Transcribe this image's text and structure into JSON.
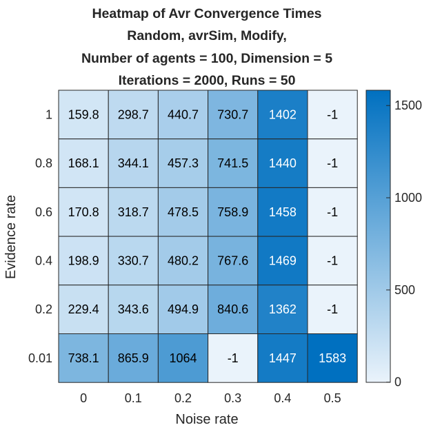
{
  "chart_data": {
    "type": "heatmap",
    "title": [
      "Heatmap of Avr Convergence Times",
      "Random, avrSim, Modify,",
      "Number of agents = 100, Dimension = 5",
      "Iterations = 2000, Runs = 50"
    ],
    "xlabel": "Noise rate",
    "ylabel": "Evidence rate",
    "x_categories": [
      "0",
      "0.1",
      "0.2",
      "0.3",
      "0.4",
      "0.5"
    ],
    "y_categories": [
      "1",
      "0.8",
      "0.6",
      "0.4",
      "0.2",
      "0.01"
    ],
    "values": [
      [
        159.8,
        298.7,
        440.7,
        730.7,
        1402,
        -1
      ],
      [
        168.1,
        344.1,
        457.3,
        741.5,
        1440,
        -1
      ],
      [
        170.8,
        318.7,
        478.5,
        758.9,
        1458,
        -1
      ],
      [
        198.9,
        330.7,
        480.2,
        767.6,
        1469,
        -1
      ],
      [
        229.4,
        343.6,
        494.9,
        840.6,
        1362,
        -1
      ],
      [
        738.1,
        865.9,
        1064,
        -1,
        1447,
        1583
      ]
    ],
    "value_labels": [
      [
        "159.8",
        "298.7",
        "440.7",
        "730.7",
        "1402",
        "-1"
      ],
      [
        "168.1",
        "344.1",
        "457.3",
        "741.5",
        "1440",
        "-1"
      ],
      [
        "170.8",
        "318.7",
        "478.5",
        "758.9",
        "1458",
        "-1"
      ],
      [
        "198.9",
        "330.7",
        "480.2",
        "767.6",
        "1469",
        "-1"
      ],
      [
        "229.4",
        "343.6",
        "494.9",
        "840.6",
        "1362",
        "-1"
      ],
      [
        "738.1",
        "865.9",
        "1064",
        "-1",
        "1447",
        "1583"
      ]
    ],
    "colorbar": {
      "range": [
        -1,
        1583
      ],
      "ticks": [
        0,
        500,
        1000,
        1500
      ],
      "tick_labels": [
        "0",
        "500",
        "1000",
        "1500"
      ]
    },
    "colors": {
      "low": "#EAF3FB",
      "high": "#0070C0",
      "text_dark": "#000000",
      "text_light": "#FFFFFF",
      "grid": "#262626"
    }
  }
}
